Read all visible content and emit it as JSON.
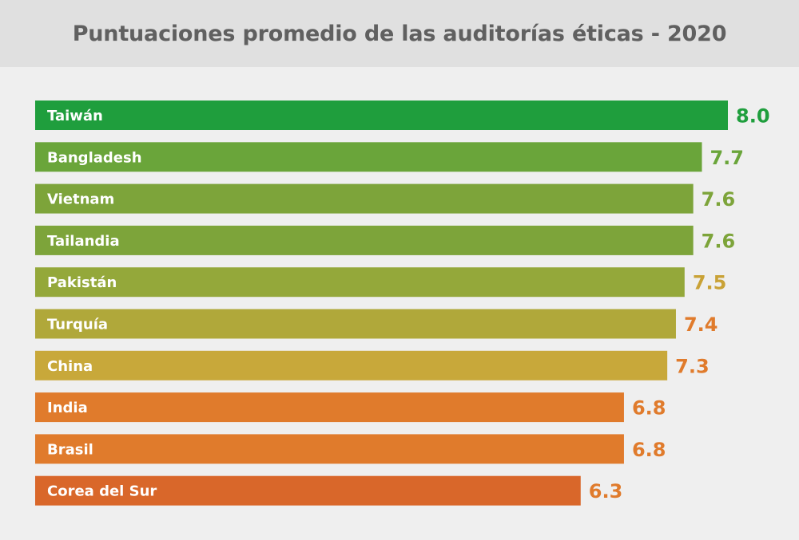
{
  "chart_data": {
    "type": "bar",
    "orientation": "horizontal",
    "title": "Puntuaciones promedio de las auditorías éticas - 2020",
    "categories": [
      "Taiwán",
      "Bangladesh",
      "Vietnam",
      "Tailandia",
      "Pakistán",
      "Turquía",
      "China",
      "India",
      "Brasil",
      "Corea del Sur"
    ],
    "values": [
      8.0,
      7.7,
      7.6,
      7.6,
      7.5,
      7.4,
      7.3,
      6.8,
      6.8,
      6.3
    ],
    "value_labels": [
      "8.0",
      "7.7",
      "7.6",
      "7.6",
      "7.5",
      "7.4",
      "7.3",
      "6.8",
      "6.8",
      "6.3"
    ],
    "bar_colors": [
      "#1f9e3d",
      "#6aa53a",
      "#7da43a",
      "#7da43a",
      "#94a83a",
      "#b0a83a",
      "#c8a83a",
      "#e07b2c",
      "#e07b2c",
      "#d9672a"
    ],
    "label_colors": [
      "#1f9e3d",
      "#6aa53a",
      "#7da43a",
      "#7da43a",
      "#c9a236",
      "#e07b2c",
      "#e07b2c",
      "#e07b2c",
      "#e07b2c",
      "#e07b2c"
    ],
    "xlim": [
      0,
      8.0
    ],
    "grid": false,
    "legend": "none"
  }
}
